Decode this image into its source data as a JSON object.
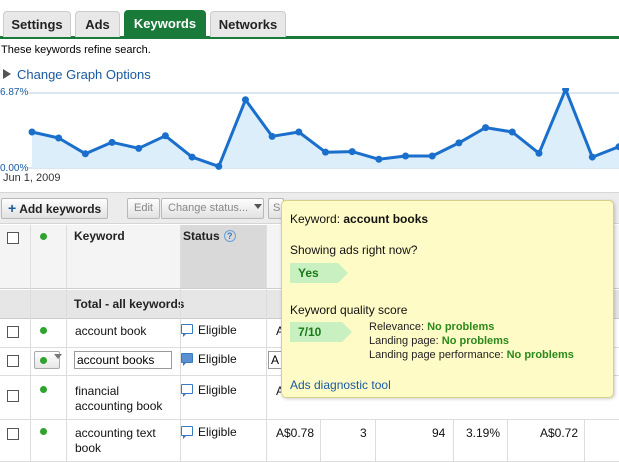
{
  "tabs": [
    {
      "label": "Settings",
      "active": false
    },
    {
      "label": "Ads",
      "active": false
    },
    {
      "label": "Keywords",
      "active": true
    },
    {
      "label": "Networks",
      "active": false
    }
  ],
  "subtitle": "These keywords refine search.",
  "graph_options_label": "Change Graph Options",
  "chart_data": {
    "type": "line",
    "y_max_label": "6.87%",
    "y_min_label": "0.00%",
    "x_start_label": "Jun 1, 2009",
    "ylim": [
      0,
      6.87
    ],
    "values": [
      3.3,
      2.75,
      1.3,
      2.35,
      1.8,
      2.95,
      1.0,
      0.15,
      6.25,
      2.9,
      3.3,
      1.45,
      1.5,
      0.8,
      1.1,
      1.1,
      2.3,
      3.7,
      3.3,
      1.35,
      7.2,
      1.0,
      1.95
    ],
    "grid": false,
    "color": "#1a6fcc"
  },
  "toolbar": {
    "add_keywords": "Add keywords",
    "edit": "Edit",
    "change_status": "Change status...",
    "see_partial": "S"
  },
  "table": {
    "headers": {
      "keyword": "Keyword",
      "status": "Status",
      "help": "?"
    },
    "total_label": "Total - all keywords",
    "rows": [
      {
        "keyword": "account book",
        "status": "Eligible",
        "bid": "A",
        "clicks": "",
        "impr": "",
        "ctr": "",
        "cpc": ""
      },
      {
        "keyword": "account books",
        "status": "Eligible",
        "bid": "A",
        "clicks": "",
        "impr": "",
        "ctr": "",
        "cpc": ""
      },
      {
        "keyword_line1": "financial",
        "keyword_line2": "accounting book",
        "status": "Eligible",
        "bid": "A",
        "clicks": "",
        "impr": "",
        "ctr": "",
        "cpc": ""
      },
      {
        "keyword_line1": "accounting text",
        "keyword_line2": "book",
        "status": "Eligible",
        "bid": "A$0.78",
        "clicks": "3",
        "impr": "94",
        "ctr": "3.19%",
        "cpc": "A$0.72"
      }
    ]
  },
  "popup": {
    "keyword_prefix": "Keyword:",
    "keyword": "account books",
    "showing_label": "Showing ads right now?",
    "showing_value": "Yes",
    "qs_label": "Keyword quality score",
    "qs_value": "7/10",
    "relevance_label": "Relevance:",
    "relevance_value": "No problems",
    "landing_label": "Landing page:",
    "landing_value": "No problems",
    "landing_perf_label": "Landing page performance:",
    "landing_perf_value": "No problems",
    "diagnostic_link": "Ads diagnostic tool"
  },
  "colors": {
    "accent": "#1a7a3a",
    "link": "#1a5aa0",
    "popup_bg": "#fffbc6",
    "ok_green": "#2a8a1a"
  }
}
